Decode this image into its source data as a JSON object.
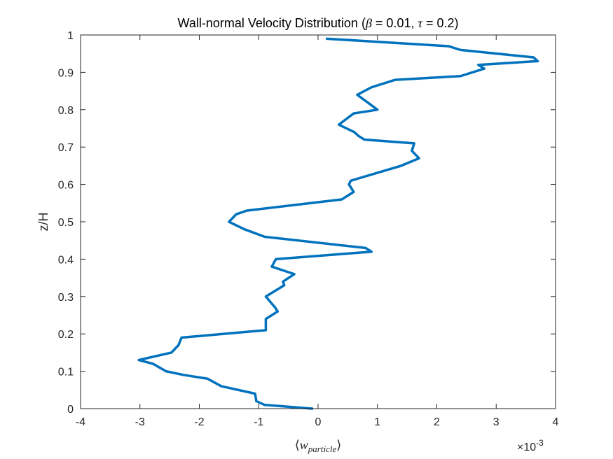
{
  "chart_data": {
    "type": "line",
    "title": {
      "prefix": "Wall-normal Velocity Distribution (",
      "beta_symbol": "β",
      "beta_text": " = 0.01, ",
      "tau_symbol": "τ",
      "tau_text": " = 0.2)"
    },
    "xlabel": {
      "open": "⟨",
      "var": "w",
      "sub": "particle",
      "close": "⟩"
    },
    "ylabel": "z/H",
    "x_exponent": {
      "times": "×",
      "base": "10",
      "power": "-3"
    },
    "xlim": [
      -4,
      4
    ],
    "ylim": [
      0,
      1
    ],
    "x_ticks": [
      -4,
      -3,
      -2,
      -1,
      0,
      1,
      2,
      3,
      4
    ],
    "y_ticks": [
      0,
      0.1,
      0.2,
      0.3,
      0.4,
      0.5,
      0.6,
      0.7,
      0.8,
      0.9,
      1
    ],
    "x_tick_labels": [
      "-4",
      "-3",
      "-2",
      "-1",
      "0",
      "1",
      "2",
      "3",
      "4"
    ],
    "y_tick_labels": [
      "0",
      "0.1",
      "0.2",
      "0.3",
      "0.4",
      "0.5",
      "0.6",
      "0.7",
      "0.8",
      "0.9",
      "1"
    ],
    "grid": false,
    "line_color": "#0072BD",
    "axis_color": "#262626",
    "series": [
      {
        "x": [
          -0.0001,
          -0.0009,
          -0.00104,
          -0.00106,
          -0.00163,
          -0.00186,
          -0.00226,
          -0.00256,
          -0.00278,
          -0.00302,
          -0.00247,
          -0.00235,
          -0.0023,
          -0.00088,
          -0.00088,
          -0.00068,
          -0.00072,
          -0.00088,
          -0.00057,
          -0.00059,
          -0.0004,
          -0.00078,
          -0.00071,
          0.0009,
          0.0008,
          -0.0009,
          -0.00124,
          -0.0015,
          -0.00138,
          -0.0012,
          0.0004,
          0.0006,
          0.00052,
          0.00055,
          0.0014,
          0.0017,
          0.00158,
          0.00162,
          0.00078,
          0.00068,
          0.00061,
          0.00035,
          0.0006,
          0.001,
          0.00066,
          0.0009,
          0.0013,
          0.0024,
          0.0028,
          0.0027,
          0.0037,
          0.00363,
          0.0024,
          0.0022,
          0.00015
        ],
        "y": [
          0.0,
          0.01,
          0.02,
          0.04,
          0.06,
          0.08,
          0.09,
          0.1,
          0.12,
          0.13,
          0.15,
          0.17,
          0.19,
          0.21,
          0.24,
          0.26,
          0.27,
          0.3,
          0.33,
          0.34,
          0.36,
          0.38,
          0.4,
          0.42,
          0.43,
          0.46,
          0.48,
          0.5,
          0.52,
          0.53,
          0.56,
          0.58,
          0.6,
          0.61,
          0.65,
          0.67,
          0.69,
          0.71,
          0.72,
          0.73,
          0.74,
          0.76,
          0.79,
          0.8,
          0.84,
          0.86,
          0.88,
          0.89,
          0.91,
          0.92,
          0.93,
          0.94,
          0.96,
          0.97,
          0.99
        ]
      }
    ]
  }
}
